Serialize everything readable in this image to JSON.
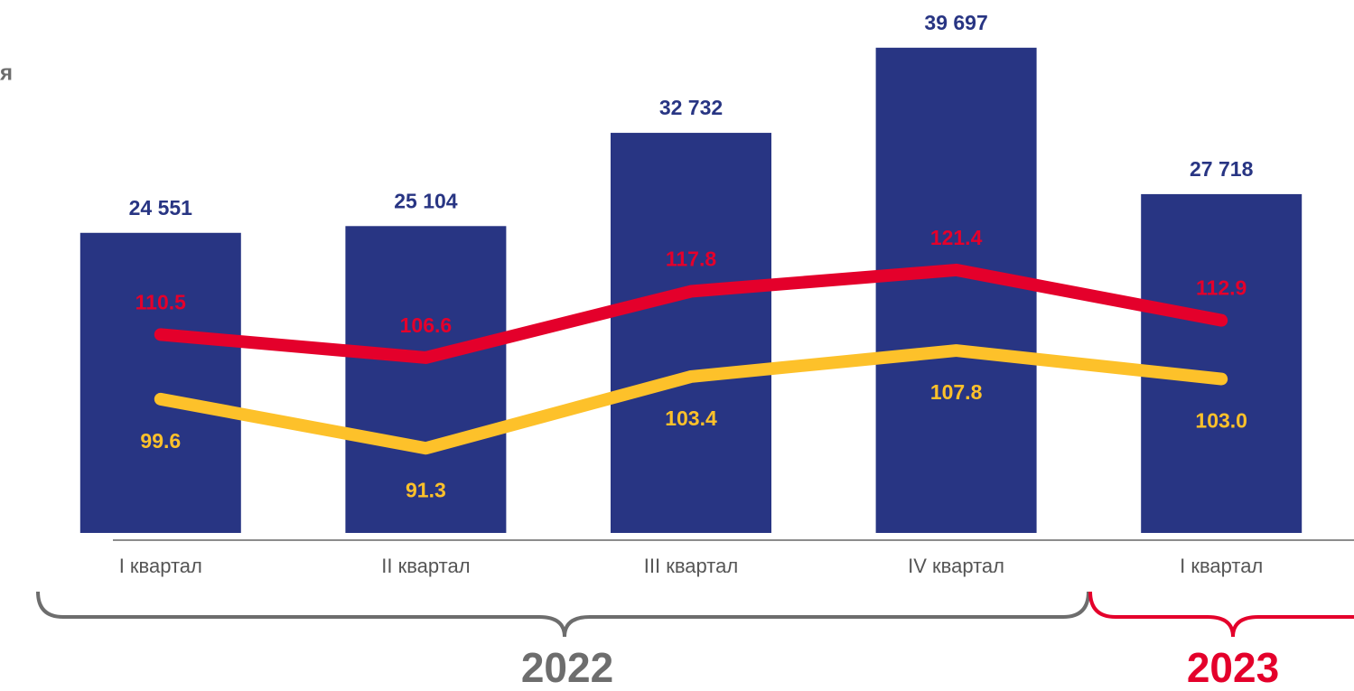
{
  "chart_data": {
    "type": "bar",
    "annotations": [
      "я"
    ],
    "categories": [
      "I квартал",
      "II квартал",
      "III квартал",
      "IV квартал",
      "I квартал"
    ],
    "ylim": [
      0,
      43600
    ],
    "y2lim": [
      77,
      167
    ],
    "series": [
      {
        "type": "bar",
        "color": "#283583",
        "values": [
          24551,
          25104,
          32732,
          39697,
          27718
        ],
        "value_labels": [
          "24 551",
          "25 104",
          "32 732",
          "39 697",
          "27 718"
        ]
      },
      {
        "type": "line",
        "axis": "y2",
        "color": "#e4002b",
        "label_position": "above",
        "values": [
          110.5,
          106.6,
          117.8,
          121.4,
          112.9
        ]
      },
      {
        "type": "line",
        "axis": "y2",
        "color": "#fdc12a",
        "label_position": "below",
        "values": [
          99.6,
          91.3,
          103.4,
          107.8,
          103.0
        ],
        "value_labels": [
          "99.6",
          "91.3",
          "103.4",
          "107.8",
          "103.0"
        ]
      }
    ],
    "groups": [
      {
        "label": "2022",
        "color": "#6d6d6d"
      },
      {
        "label": "2023",
        "color": "#e4002b"
      }
    ]
  }
}
